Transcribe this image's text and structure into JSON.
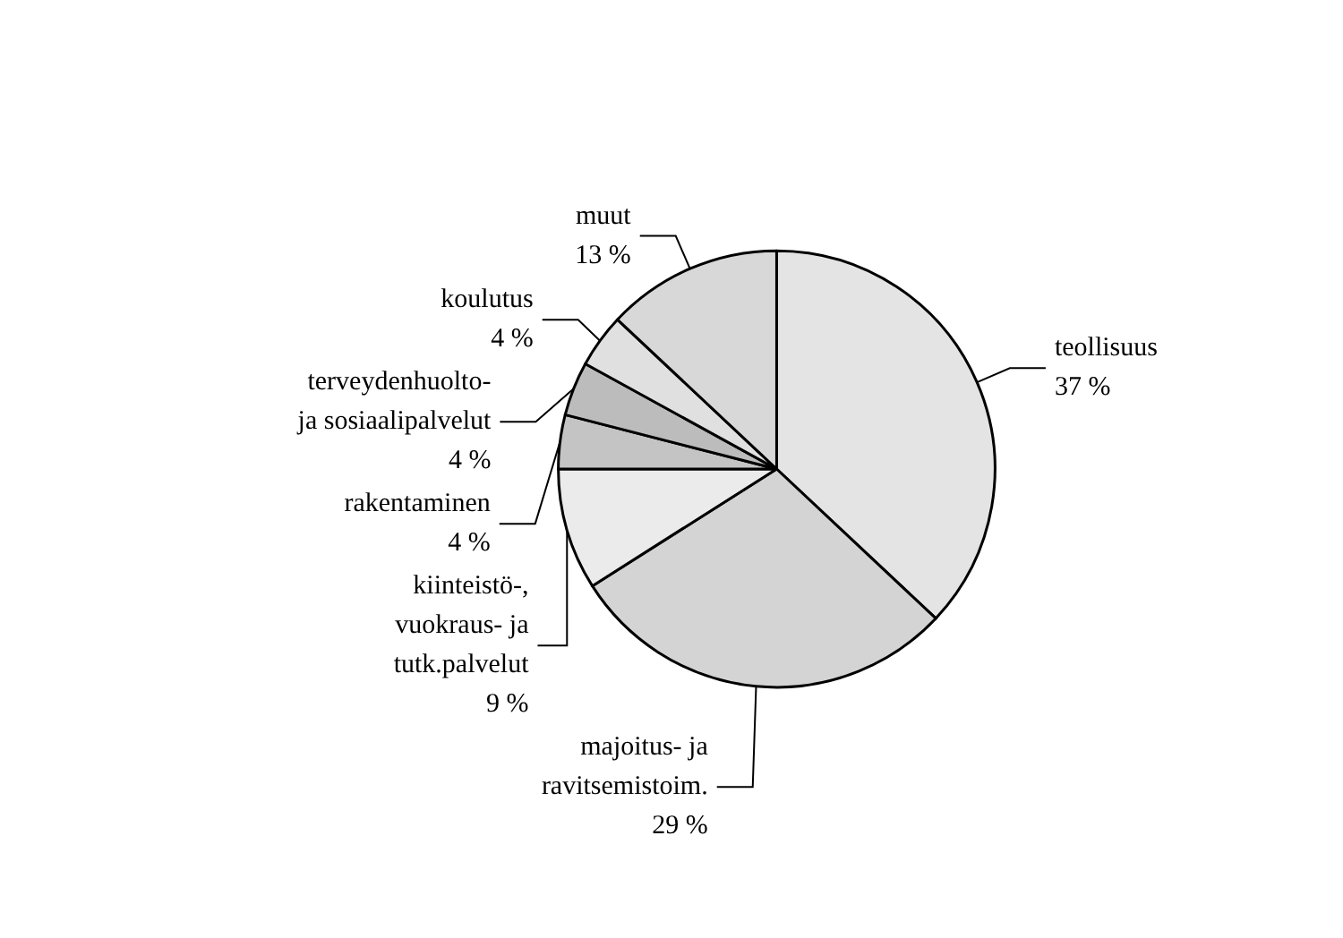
{
  "chart_data": {
    "type": "pie",
    "categories": [
      "teollisuus",
      "majoitus- ja\nravitsemistoim.",
      "kiinteistö-,\nvuokraus- ja\ntutk.palvelut",
      "rakentaminen",
      "terveydenhuolto-\nja sosiaalipalvelut",
      "koulutus",
      "muut"
    ],
    "values": [
      37,
      29,
      9,
      4,
      4,
      4,
      13
    ],
    "value_labels": [
      "37 %",
      "29 %",
      "9 %",
      "4 %",
      "4 %",
      "4 %",
      "13 %"
    ],
    "colors": [
      "#e4e4e4",
      "#d4d4d4",
      "#ebebeb",
      "#c4c4c4",
      "#bcbcbc",
      "#e0e0e0",
      "#d8d8d8"
    ],
    "legend": false
  }
}
